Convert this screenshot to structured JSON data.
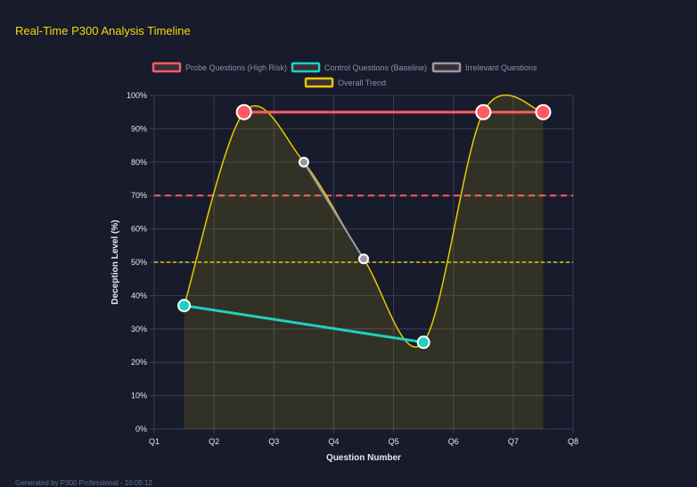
{
  "title": "Real-Time P300 Analysis Timeline",
  "footer": "Generated by P300 Professional - 10:05:12",
  "chart_data": {
    "type": "line",
    "xlabel": "Question Number",
    "ylabel": "Deception Level (%)",
    "ylim": [
      0,
      100
    ],
    "x_ticks": [
      "Q1",
      "Q2",
      "Q3",
      "Q4",
      "Q5",
      "Q6",
      "Q7",
      "Q8"
    ],
    "y_ticks": [
      "0%",
      "10%",
      "20%",
      "30%",
      "40%",
      "50%",
      "60%",
      "70%",
      "80%",
      "90%",
      "100%"
    ],
    "grid": true,
    "legend_placement": "top",
    "series": [
      {
        "name": "Probe Questions (High Risk)",
        "color": "#ff5a64",
        "points": [
          [
            "Q2",
            95
          ],
          [
            "Q6",
            95
          ],
          [
            "Q7",
            95
          ]
        ]
      },
      {
        "name": "Control Questions (Baseline)",
        "color": "#1ed2c0",
        "points": [
          [
            "Q1",
            37
          ],
          [
            "Q5",
            26
          ]
        ]
      },
      {
        "name": "Irrelevant Questions",
        "color": "#9a9aa6",
        "points": [
          [
            "Q3",
            80
          ],
          [
            "Q4",
            51
          ]
        ]
      },
      {
        "name": "Overall Trend",
        "color": "#e8c800",
        "points": [
          [
            "Q1",
            37
          ],
          [
            "Q2",
            95
          ],
          [
            "Q3",
            80
          ],
          [
            "Q4",
            51
          ],
          [
            "Q5",
            26
          ],
          [
            "Q6",
            95
          ],
          [
            "Q7",
            95
          ]
        ]
      }
    ],
    "thresholds": [
      {
        "value": 70,
        "color": "#ff5a64"
      },
      {
        "value": 50,
        "color": "#e8c800"
      }
    ]
  }
}
